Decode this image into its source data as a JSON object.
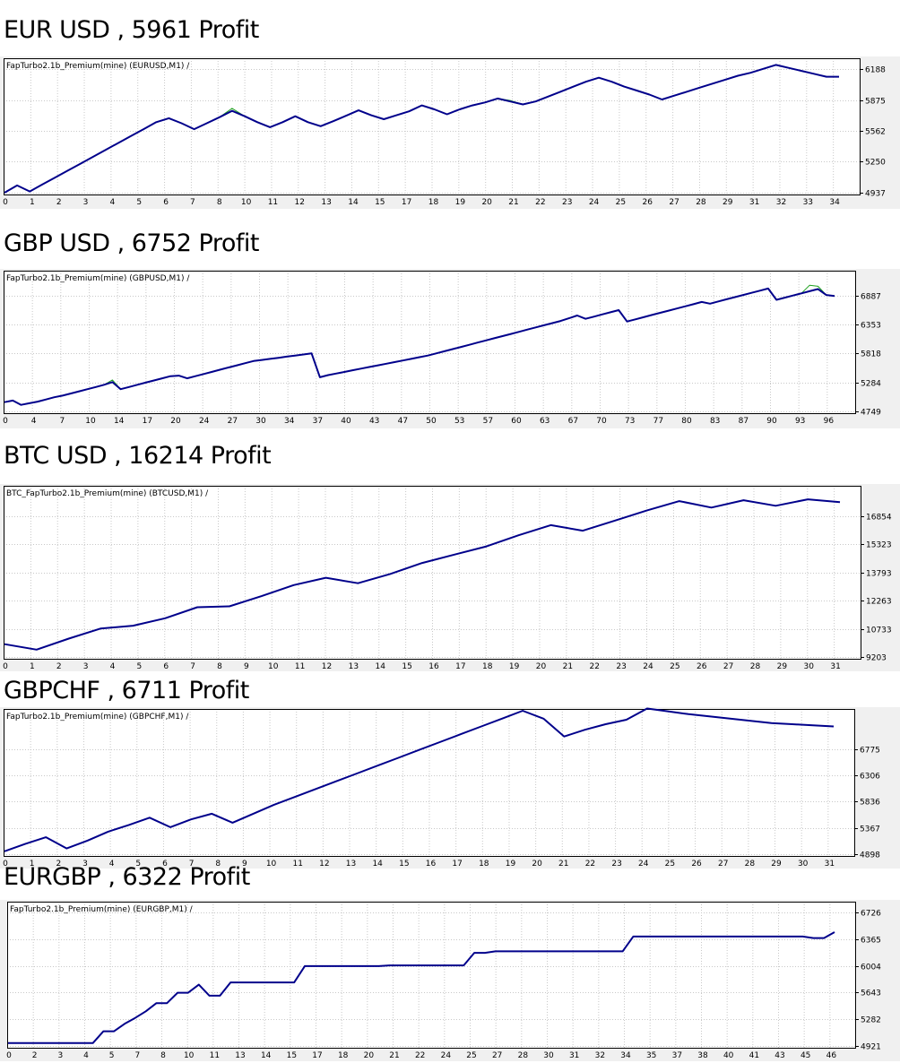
{
  "colors": {
    "equity": "#00008b",
    "balance": "#1ea01e",
    "grid": "#c8c8c8",
    "plot_bg": "#ffffff",
    "strip_bg": "#f0f0f0",
    "frame": "#000000"
  },
  "chart_data": [
    {
      "type": "line",
      "heading": "EUR USD , 5961 Profit",
      "label": "FapTurbo2.1b_Premium(mine) (EURUSD,M1) /",
      "x_labels": [
        "0",
        "1",
        "2",
        "3",
        "4",
        "5",
        "6",
        "7",
        "8",
        "10",
        "11",
        "12",
        "13",
        "14",
        "15",
        "17",
        "18",
        "19",
        "20",
        "21",
        "22",
        "23",
        "24",
        "25",
        "26",
        "27",
        "28",
        "29",
        "31",
        "32",
        "33",
        "34"
      ],
      "y_ticks": [
        6188,
        5875,
        5562,
        5250,
        4937
      ],
      "ylim": [
        4937,
        6188
      ],
      "series": [
        {
          "values": [
            4937,
            5010,
            4950,
            5020,
            5090,
            5160,
            5230,
            5300,
            5370,
            5440,
            5510,
            5580,
            5650,
            5690,
            5640,
            5580,
            5640,
            5700,
            5765,
            5710,
            5650,
            5600,
            5650,
            5710,
            5650,
            5610,
            5660,
            5715,
            5770,
            5720,
            5680,
            5720,
            5760,
            5820,
            5780,
            5730,
            5780,
            5820,
            5850,
            5890,
            5860,
            5830,
            5860,
            5910,
            5960,
            6010,
            6060,
            6100,
            6060,
            6010,
            5970,
            5930,
            5880,
            5920,
            5960,
            6000,
            6040,
            6080,
            6120,
            6150,
            6190,
            6230,
            6200,
            6170,
            6140,
            6110,
            6110
          ]
        },
        {
          "values": [
            4937,
            5010,
            4950,
            5020,
            5090,
            5160,
            5230,
            5300,
            5370,
            5440,
            5510,
            5580,
            5650,
            5690,
            5640,
            5580,
            5640,
            5700,
            5790,
            5710,
            5650,
            5600,
            5650,
            5710,
            5650,
            5610,
            5660,
            5715,
            5770,
            5720,
            5680,
            5720,
            5760,
            5820,
            5780,
            5730,
            5780,
            5820,
            5850,
            5890,
            5870,
            5830,
            5860,
            5910,
            5960,
            6010,
            6060,
            6100,
            6060,
            6010,
            5970,
            5930,
            5880,
            5920,
            5960,
            6000,
            6040,
            6080,
            6120,
            6150,
            6190,
            6230,
            6200,
            6170,
            6140,
            6110,
            6110
          ]
        }
      ]
    },
    {
      "type": "line",
      "heading": "GBP USD , 6752 Profit",
      "label": "FapTurbo2.1b_Premium(mine) (GBPUSD,M1) /",
      "x_labels": [
        "0",
        "4",
        "7",
        "10",
        "14",
        "17",
        "20",
        "24",
        "27",
        "30",
        "34",
        "37",
        "40",
        "43",
        "47",
        "50",
        "53",
        "57",
        "60",
        "63",
        "67",
        "70",
        "73",
        "77",
        "80",
        "83",
        "87",
        "90",
        "93",
        "96"
      ],
      "y_ticks": [
        6887,
        6353,
        5818,
        5284,
        4749
      ],
      "ylim": [
        4749,
        7150
      ],
      "series": [
        {
          "values": [
            4920,
            4950,
            4870,
            4900,
            4930,
            4970,
            5010,
            5040,
            5080,
            5120,
            5160,
            5200,
            5240,
            5290,
            5160,
            5200,
            5240,
            5280,
            5320,
            5360,
            5400,
            5410,
            5360,
            5400,
            5440,
            5480,
            5520,
            5560,
            5600,
            5640,
            5680,
            5700,
            5720,
            5740,
            5760,
            5780,
            5800,
            5820,
            5380,
            5420,
            5450,
            5480,
            5510,
            5540,
            5570,
            5600,
            5630,
            5660,
            5690,
            5720,
            5750,
            5780,
            5820,
            5860,
            5900,
            5940,
            5980,
            6020,
            6060,
            6100,
            6140,
            6180,
            6220,
            6260,
            6300,
            6340,
            6380,
            6420,
            6470,
            6520,
            6460,
            6500,
            6540,
            6580,
            6620,
            6410,
            6450,
            6490,
            6530,
            6570,
            6610,
            6650,
            6690,
            6730,
            6770,
            6740,
            6780,
            6820,
            6860,
            6900,
            6940,
            6980,
            7020,
            6810,
            6850,
            6890,
            6930,
            6970,
            7010,
            6900,
            6880
          ]
        },
        {
          "values": [
            4920,
            4950,
            4870,
            4900,
            4930,
            4970,
            5010,
            5040,
            5080,
            5120,
            5160,
            5200,
            5240,
            5330,
            5160,
            5200,
            5240,
            5280,
            5320,
            5360,
            5400,
            5410,
            5360,
            5400,
            5440,
            5480,
            5520,
            5560,
            5600,
            5640,
            5680,
            5700,
            5720,
            5740,
            5760,
            5780,
            5800,
            5820,
            5380,
            5420,
            5450,
            5480,
            5510,
            5540,
            5570,
            5600,
            5630,
            5660,
            5690,
            5720,
            5750,
            5780,
            5820,
            5860,
            5900,
            5940,
            5980,
            6020,
            6060,
            6100,
            6140,
            6180,
            6220,
            6260,
            6300,
            6340,
            6380,
            6420,
            6470,
            6520,
            6460,
            6500,
            6540,
            6580,
            6620,
            6410,
            6450,
            6490,
            6530,
            6570,
            6610,
            6650,
            6690,
            6730,
            6770,
            6740,
            6780,
            6820,
            6860,
            6900,
            6940,
            6980,
            7020,
            6810,
            6850,
            6890,
            6930,
            7080,
            7060,
            6900,
            6880
          ]
        }
      ]
    },
    {
      "type": "line",
      "heading": "BTC USD , 16214 Profit",
      "label": "BTC_FapTurbo2.1b_Premium(mine) (BTCUSD,M1) /",
      "x_labels": [
        "0",
        "1",
        "2",
        "3",
        "4",
        "5",
        "6",
        "7",
        "8",
        "9",
        "10",
        "11",
        "12",
        "13",
        "14",
        "15",
        "16",
        "17",
        "18",
        "19",
        "20",
        "21",
        "22",
        "23",
        "24",
        "25",
        "26",
        "27",
        "28",
        "29",
        "30",
        "31"
      ],
      "y_ticks": [
        16854,
        15323,
        13793,
        12263,
        10733,
        9203
      ],
      "ylim": [
        9203,
        17900
      ],
      "series": [
        {
          "values": [
            9900,
            9600,
            10200,
            10750,
            10900,
            11300,
            11900,
            11950,
            12500,
            13100,
            13500,
            13200,
            13700,
            14300,
            14750,
            15200,
            15800,
            16350,
            16050,
            16600,
            17150,
            17650,
            17300,
            17700,
            17400,
            17750,
            17600
          ]
        },
        {
          "values": [
            9900,
            9600,
            10200,
            10750,
            10900,
            11300,
            11900,
            11950,
            12500,
            13100,
            13500,
            13200,
            13700,
            14300,
            14750,
            15200,
            15800,
            16350,
            16050,
            16600,
            17150,
            17650,
            17300,
            17700,
            17400,
            17750,
            17600
          ]
        }
      ]
    },
    {
      "type": "line",
      "heading": "GBPCHF , 6711 Profit",
      "label": "FapTurbo2.1b_Premium(mine) (GBPCHF,M1) /",
      "x_labels": [
        "0",
        "1",
        "2",
        "3",
        "4",
        "5",
        "6",
        "7",
        "8",
        "9",
        "10",
        "11",
        "12",
        "13",
        "14",
        "15",
        "16",
        "17",
        "18",
        "19",
        "20",
        "21",
        "22",
        "23",
        "24",
        "25",
        "26",
        "27",
        "28",
        "29",
        "30",
        "31"
      ],
      "y_ticks": [
        6775,
        6306,
        5836,
        5367,
        4898
      ],
      "ylim": [
        4898,
        7300
      ],
      "series": [
        {
          "values": [
            4950,
            5080,
            5200,
            5000,
            5140,
            5300,
            5420,
            5550,
            5380,
            5520,
            5620,
            5460,
            5620,
            5780,
            5920,
            6060,
            6200,
            6340,
            6480,
            6620,
            6760,
            6900,
            7040,
            7180,
            7320,
            7460,
            7320,
            7000,
            7120,
            7220,
            7300,
            7500,
            7450,
            7400,
            7360,
            7320,
            7280,
            7240,
            7220,
            7200,
            7180
          ]
        }
      ]
    },
    {
      "type": "line",
      "heading": "EURGBP , 6322 Profit",
      "label": "FapTurbo2.1b_Premium(mine) (EURGBP,M1) /",
      "x_labels": [
        "0",
        "2",
        "3",
        "4",
        "5",
        "7",
        "8",
        "10",
        "11",
        "13",
        "14",
        "15",
        "17",
        "18",
        "20",
        "21",
        "22",
        "24",
        "25",
        "27",
        "28",
        "30",
        "31",
        "32",
        "34",
        "35",
        "37",
        "38",
        "40",
        "41",
        "43",
        "45",
        "46"
      ],
      "y_ticks": [
        6726,
        6365,
        6004,
        5643,
        5282,
        4921
      ],
      "ylim": [
        4921,
        6726
      ],
      "series": [
        {
          "values": [
            4960,
            4960,
            4960,
            4960,
            4960,
            4960,
            4960,
            4960,
            4960,
            5120,
            5120,
            5220,
            5300,
            5390,
            5500,
            5500,
            5640,
            5640,
            5750,
            5600,
            5600,
            5780,
            5780,
            5780,
            5780,
            5780,
            5780,
            5780,
            6000,
            6000,
            6000,
            6000,
            6000,
            6000,
            6000,
            6000,
            6010,
            6010,
            6010,
            6010,
            6010,
            6010,
            6010,
            6010,
            6180,
            6180,
            6200,
            6200,
            6200,
            6200,
            6200,
            6200,
            6200,
            6200,
            6200,
            6200,
            6200,
            6200,
            6200,
            6400,
            6400,
            6400,
            6400,
            6400,
            6400,
            6400,
            6400,
            6400,
            6400,
            6400,
            6400,
            6400,
            6400,
            6400,
            6400,
            6400,
            6380,
            6380,
            6460
          ]
        }
      ]
    }
  ]
}
